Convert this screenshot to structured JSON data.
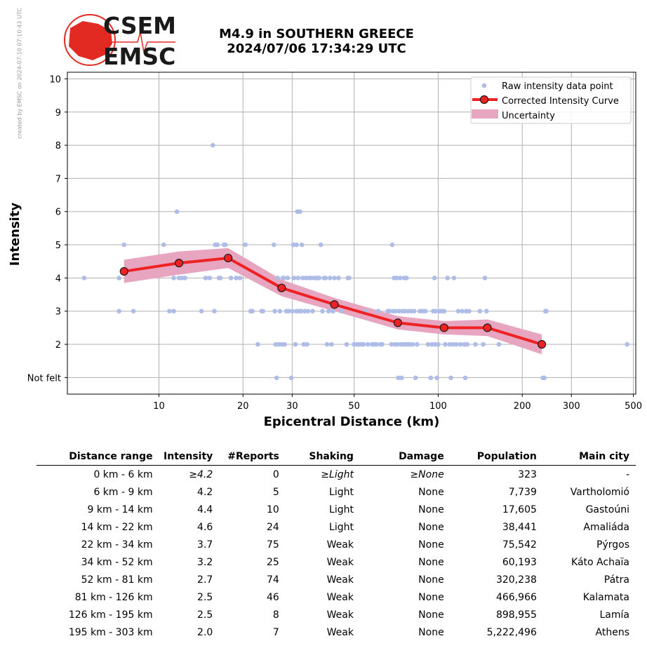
{
  "header": {
    "logo_text_top": "CSEM",
    "logo_text_bottom": "EMSC",
    "title_line1": "M4.9 in SOUTHERN GREECE",
    "title_line2": "2024/07/06 17:34:29 UTC",
    "watermark": "created by EMSC on 2024-07-10 07:10:43 UTC"
  },
  "colors": {
    "raw_points": "#aebde8",
    "curve": "#ee2222",
    "marker_edge": "#1a1a1a",
    "uncertainty": "#e8a5c0",
    "grid": "#b0b0b0",
    "logo_red": "#e32a22",
    "logo_text": "#1a1a1a"
  },
  "chart_data": {
    "type": "scatter",
    "xscale": "log",
    "xlim": [
      4.7,
      510
    ],
    "ylim": [
      0.5,
      10.2
    ],
    "xlabel": "Epicentral Distance (km)",
    "ylabel": "Intensity",
    "xticks": [
      10,
      20,
      30,
      50,
      100,
      200,
      300,
      500
    ],
    "yticks": [
      {
        "value": 1,
        "label": "Not felt"
      },
      {
        "value": 2,
        "label": "2"
      },
      {
        "value": 3,
        "label": "3"
      },
      {
        "value": 4,
        "label": "4"
      },
      {
        "value": 5,
        "label": "5"
      },
      {
        "value": 6,
        "label": "6"
      },
      {
        "value": 7,
        "label": "7"
      },
      {
        "value": 8,
        "label": "8"
      },
      {
        "value": 9,
        "label": "9"
      },
      {
        "value": 10,
        "label": "10"
      }
    ],
    "grid": true,
    "legend_position": "top-right",
    "legend": [
      "Raw intensity data point",
      "Corrected Intensity Curve",
      "Uncertainty"
    ],
    "raw_points": [
      [
        5.4,
        4
      ],
      [
        7.2,
        4
      ],
      [
        7.2,
        3
      ],
      [
        7.5,
        5
      ],
      [
        8.1,
        3
      ],
      [
        10.4,
        5
      ],
      [
        10.9,
        3
      ],
      [
        11.3,
        3
      ],
      [
        11.3,
        4
      ],
      [
        11.6,
        6
      ],
      [
        11.8,
        4
      ],
      [
        12.1,
        4
      ],
      [
        12.4,
        4
      ],
      [
        14.2,
        3
      ],
      [
        14.7,
        4
      ],
      [
        15.2,
        4
      ],
      [
        15.6,
        8
      ],
      [
        15.8,
        3
      ],
      [
        15.9,
        5
      ],
      [
        16.2,
        5
      ],
      [
        16.4,
        4
      ],
      [
        16.6,
        4
      ],
      [
        17.1,
        5
      ],
      [
        17.3,
        5
      ],
      [
        18.1,
        4
      ],
      [
        18.9,
        4
      ],
      [
        19.5,
        4
      ],
      [
        20.4,
        5
      ],
      [
        21.3,
        3
      ],
      [
        21.6,
        3
      ],
      [
        22.6,
        2
      ],
      [
        23.3,
        3
      ],
      [
        23.6,
        3
      ],
      [
        25.8,
        5
      ],
      [
        26.0,
        3
      ],
      [
        26.2,
        2
      ],
      [
        26.4,
        0.99
      ],
      [
        26.6,
        4
      ],
      [
        26.8,
        2
      ],
      [
        27.1,
        3
      ],
      [
        27.5,
        2
      ],
      [
        27.8,
        4
      ],
      [
        28.0,
        4
      ],
      [
        28.2,
        2
      ],
      [
        28.6,
        3
      ],
      [
        28.9,
        4
      ],
      [
        29.2,
        3
      ],
      [
        29.8,
        0.99
      ],
      [
        30.1,
        3
      ],
      [
        30.3,
        5
      ],
      [
        30.5,
        4
      ],
      [
        30.8,
        2
      ],
      [
        31.1,
        5
      ],
      [
        31.1,
        3
      ],
      [
        31.3,
        6
      ],
      [
        31.5,
        4
      ],
      [
        31.8,
        3
      ],
      [
        32.0,
        6
      ],
      [
        32.3,
        3
      ],
      [
        32.5,
        5
      ],
      [
        32.7,
        4
      ],
      [
        33.0,
        2
      ],
      [
        33.3,
        3
      ],
      [
        33.6,
        4
      ],
      [
        33.9,
        2
      ],
      [
        34.2,
        3
      ],
      [
        34.5,
        4
      ],
      [
        35.0,
        4
      ],
      [
        35.5,
        3
      ],
      [
        36.0,
        4
      ],
      [
        36.5,
        4
      ],
      [
        37.0,
        4
      ],
      [
        37.5,
        4
      ],
      [
        38.0,
        5
      ],
      [
        38.5,
        3
      ],
      [
        39.0,
        4
      ],
      [
        39.5,
        4
      ],
      [
        40.0,
        2
      ],
      [
        40.5,
        3
      ],
      [
        41.0,
        4
      ],
      [
        41.5,
        2
      ],
      [
        42.0,
        3
      ],
      [
        42.5,
        4
      ],
      [
        44.0,
        4
      ],
      [
        45.0,
        3
      ],
      [
        47.0,
        2
      ],
      [
        47.5,
        4
      ],
      [
        48.0,
        4
      ],
      [
        50.0,
        2
      ],
      [
        51.0,
        2
      ],
      [
        52.0,
        2
      ],
      [
        53.0,
        2
      ],
      [
        54.0,
        2
      ],
      [
        55.0,
        3
      ],
      [
        56.0,
        2
      ],
      [
        58.0,
        2
      ],
      [
        59.0,
        2
      ],
      [
        60.0,
        2
      ],
      [
        61.0,
        3
      ],
      [
        62.0,
        2
      ],
      [
        63.0,
        2
      ],
      [
        66.0,
        3
      ],
      [
        67.0,
        3
      ],
      [
        68.0,
        2
      ],
      [
        68.5,
        5
      ],
      [
        69.0,
        3
      ],
      [
        69.5,
        4
      ],
      [
        70.0,
        2
      ],
      [
        70.5,
        3
      ],
      [
        71.0,
        4
      ],
      [
        71.5,
        2
      ],
      [
        72.0,
        0.99
      ],
      [
        72.5,
        3
      ],
      [
        73.0,
        4
      ],
      [
        73.5,
        2
      ],
      [
        74.0,
        0.99
      ],
      [
        74.5,
        3
      ],
      [
        75.0,
        2
      ],
      [
        75.5,
        4
      ],
      [
        76.0,
        3
      ],
      [
        76.5,
        2
      ],
      [
        77.0,
        4
      ],
      [
        77.5,
        2
      ],
      [
        78.0,
        3
      ],
      [
        79.0,
        2
      ],
      [
        80.0,
        3
      ],
      [
        81.0,
        2
      ],
      [
        82.0,
        3
      ],
      [
        83.0,
        0.99
      ],
      [
        84.0,
        2
      ],
      [
        86.0,
        3
      ],
      [
        88.0,
        3
      ],
      [
        90.0,
        3
      ],
      [
        92.0,
        2
      ],
      [
        94.0,
        0.99
      ],
      [
        95.0,
        2
      ],
      [
        96.0,
        3
      ],
      [
        97.0,
        4
      ],
      [
        97.5,
        2
      ],
      [
        98.0,
        3
      ],
      [
        99.0,
        0.99
      ],
      [
        100.0,
        2
      ],
      [
        101.0,
        3
      ],
      [
        103.0,
        3
      ],
      [
        105.0,
        3
      ],
      [
        106.0,
        2
      ],
      [
        108.0,
        4
      ],
      [
        110.0,
        2
      ],
      [
        111.0,
        0.99
      ],
      [
        113.0,
        2
      ],
      [
        114.0,
        4
      ],
      [
        116.0,
        2
      ],
      [
        118.0,
        3
      ],
      [
        120.0,
        2
      ],
      [
        122.0,
        3
      ],
      [
        124.0,
        2
      ],
      [
        125.0,
        0.99
      ],
      [
        126.0,
        3
      ],
      [
        127.0,
        2
      ],
      [
        129.0,
        3
      ],
      [
        136.0,
        2
      ],
      [
        141.0,
        3
      ],
      [
        145.0,
        2
      ],
      [
        147.0,
        4
      ],
      [
        149.0,
        3
      ],
      [
        165.0,
        2
      ],
      [
        237.0,
        0.99
      ],
      [
        240.0,
        0.99
      ],
      [
        242.0,
        3
      ],
      [
        244.0,
        3
      ],
      [
        475.0,
        2
      ]
    ],
    "curve": [
      {
        "x": 7.5,
        "y": 4.2,
        "lo": 3.85,
        "hi": 4.55
      },
      {
        "x": 11.8,
        "y": 4.45,
        "lo": 4.1,
        "hi": 4.8
      },
      {
        "x": 17.7,
        "y": 4.6,
        "lo": 4.3,
        "hi": 4.9
      },
      {
        "x": 27.5,
        "y": 3.7,
        "lo": 3.45,
        "hi": 3.95
      },
      {
        "x": 42.5,
        "y": 3.2,
        "lo": 3.0,
        "hi": 3.4
      },
      {
        "x": 71.7,
        "y": 2.65,
        "lo": 2.45,
        "hi": 2.85
      },
      {
        "x": 105.0,
        "y": 2.5,
        "lo": 2.3,
        "hi": 2.7
      },
      {
        "x": 150.0,
        "y": 2.5,
        "lo": 2.25,
        "hi": 2.75
      },
      {
        "x": 235.0,
        "y": 2.0,
        "lo": 1.7,
        "hi": 2.3
      }
    ]
  },
  "table": {
    "headers": [
      "Distance range",
      "Intensity",
      "#Reports",
      "Shaking",
      "Damage",
      "Population",
      "Main city"
    ],
    "rows": [
      {
        "dist": "0 km -    6 km",
        "intensity": "≥4.2",
        "reports": "0",
        "shaking": "≥Light",
        "damage": "≥None",
        "population": "323",
        "city": "-"
      },
      {
        "dist": "6 km -    9 km",
        "intensity": "4.2",
        "reports": "5",
        "shaking": "Light",
        "damage": "None",
        "population": "7,739",
        "city": "Vartholomió"
      },
      {
        "dist": "9 km -   14 km",
        "intensity": "4.4",
        "reports": "10",
        "shaking": "Light",
        "damage": "None",
        "population": "17,605",
        "city": "Gastoúni"
      },
      {
        "dist": "14 km -   22 km",
        "intensity": "4.6",
        "reports": "24",
        "shaking": "Light",
        "damage": "None",
        "population": "38,441",
        "city": "Amaliáda"
      },
      {
        "dist": "22 km -   34 km",
        "intensity": "3.7",
        "reports": "75",
        "shaking": "Weak",
        "damage": "None",
        "population": "75,542",
        "city": "Pýrgos"
      },
      {
        "dist": "34 km -   52 km",
        "intensity": "3.2",
        "reports": "25",
        "shaking": "Weak",
        "damage": "None",
        "population": "60,193",
        "city": "Káto Achaïa"
      },
      {
        "dist": "52 km -   81 km",
        "intensity": "2.7",
        "reports": "74",
        "shaking": "Weak",
        "damage": "None",
        "population": "320,238",
        "city": "Pátra"
      },
      {
        "dist": "81 km -  126 km",
        "intensity": "2.5",
        "reports": "46",
        "shaking": "Weak",
        "damage": "None",
        "population": "466,966",
        "city": "Kalamata"
      },
      {
        "dist": "126 km -  195 km",
        "intensity": "2.5",
        "reports": "8",
        "shaking": "Weak",
        "damage": "None",
        "population": "898,955",
        "city": "Lamía"
      },
      {
        "dist": "195 km -  303 km",
        "intensity": "2.0",
        "reports": "7",
        "shaking": "Weak",
        "damage": "None",
        "population": "5,222,496",
        "city": "Athens"
      }
    ]
  }
}
